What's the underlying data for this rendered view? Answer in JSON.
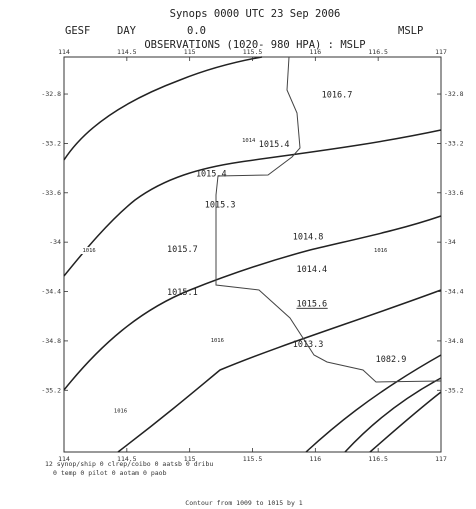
{
  "header": {
    "line1": "Synops 0000 UTC 23 Sep 2006",
    "model": "GESF",
    "period": "DAY",
    "value": "0.0",
    "field": "MSLP",
    "line3": "OBSERVATIONS (1020- 980 HPA) : MSLP"
  },
  "axes": {
    "lon_ticks": [
      "114",
      "114.5",
      "115",
      "115.5",
      "116",
      "116.5",
      "117"
    ],
    "lat_ticks": [
      "-32.8",
      "-33.2",
      "-33.6",
      "-34",
      "-34.4",
      "-34.8",
      "-35.2"
    ]
  },
  "observations": [
    {
      "label": "1016.7",
      "lon": 116.05,
      "lat": -32.83,
      "underline": false
    },
    {
      "label": "1015.4",
      "lon": 115.55,
      "lat": -33.23,
      "underline": false
    },
    {
      "label": "1015.4",
      "lon": 115.05,
      "lat": -33.47,
      "underline": false
    },
    {
      "label": "1015.3",
      "lon": 115.12,
      "lat": -33.72,
      "underline": false
    },
    {
      "label": "1014.8",
      "lon": 115.82,
      "lat": -33.98,
      "underline": false
    },
    {
      "label": "1015.7",
      "lon": 114.82,
      "lat": -34.08,
      "underline": false
    },
    {
      "label": "1014.4",
      "lon": 115.85,
      "lat": -34.24,
      "underline": false
    },
    {
      "label": "1015.1",
      "lon": 114.82,
      "lat": -34.43,
      "underline": false
    },
    {
      "label": "1015.6",
      "lon": 115.85,
      "lat": -34.52,
      "underline": true
    },
    {
      "label": "1013.3",
      "lon": 115.82,
      "lat": -34.85,
      "underline": false
    },
    {
      "label": "1082.9",
      "lon": 116.48,
      "lat": -34.97,
      "underline": false
    }
  ],
  "contour_labels": [
    {
      "label": "1014",
      "lon": 115.47,
      "lat": -33.19
    },
    {
      "label": "1016",
      "lon": 114.2,
      "lat": -34.08
    },
    {
      "label": "1016",
      "lon": 116.52,
      "lat": -34.08
    },
    {
      "label": "1016",
      "lon": 115.22,
      "lat": -34.81
    },
    {
      "label": "1016",
      "lon": 114.45,
      "lat": -35.38
    }
  ],
  "legend": {
    "line1": "12 synop/ship   0 clrep/coibo   0 aatsb   0 dribu",
    "line2": "0 temp   0 pilot   0 aotam   0 paob"
  },
  "footer": "Contour from 1009 to 1015 by 1",
  "map": {
    "lon_range": [
      114,
      117
    ],
    "lat_range": [
      -32.5,
      -35.7
    ]
  }
}
